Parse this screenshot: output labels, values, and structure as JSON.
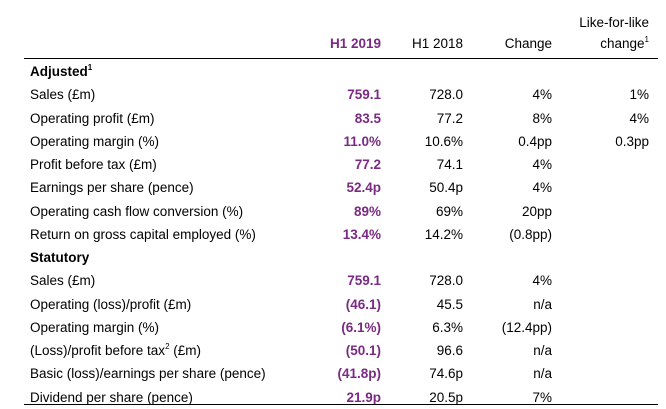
{
  "header": {
    "col_h1_2019": "H1 2019",
    "col_h1_2018": "H1 2018",
    "col_change": "Change",
    "col_lfl_line1": "Like-for-like",
    "col_lfl_line2": "change",
    "col_lfl_sup": "1"
  },
  "sections": [
    {
      "title": "Adjusted",
      "title_sup": "1",
      "rows": [
        {
          "label": "Sales (£m)",
          "h1_2019": "759.1",
          "h1_2018": "728.0",
          "change": "4%",
          "lfl": "1%"
        },
        {
          "label": "Operating profit (£m)",
          "h1_2019": "83.5",
          "h1_2018": "77.2",
          "change": "8%",
          "lfl": "4%"
        },
        {
          "label": "Operating margin (%)",
          "h1_2019": "11.0%",
          "h1_2018": "10.6%",
          "change": "0.4pp",
          "lfl": "0.3pp"
        },
        {
          "label": "Profit before tax (£m)",
          "h1_2019": "77.2",
          "h1_2018": "74.1",
          "change": "4%",
          "lfl": ""
        },
        {
          "label": "Earnings per share (pence)",
          "h1_2019": "52.4p",
          "h1_2018": "50.4p",
          "change": "4%",
          "lfl": ""
        },
        {
          "label": "Operating cash flow conversion (%)",
          "h1_2019": "89%",
          "h1_2018": "69%",
          "change": "20pp",
          "lfl": ""
        },
        {
          "label": "Return on gross capital employed (%)",
          "h1_2019": "13.4%",
          "h1_2018": "14.2%",
          "change": "(0.8pp)",
          "lfl": ""
        }
      ]
    },
    {
      "title": "Statutory",
      "title_sup": "",
      "rows": [
        {
          "label": "Sales (£m)",
          "h1_2019": "759.1",
          "h1_2018": "728.0",
          "change": "4%",
          "lfl": ""
        },
        {
          "label": "Operating (loss)/profit (£m)",
          "h1_2019": "(46.1)",
          "h1_2018": "45.5",
          "change": "n/a",
          "lfl": ""
        },
        {
          "label": "Operating margin (%)",
          "h1_2019": "(6.1%)",
          "h1_2018": "6.3%",
          "change": "(12.4pp)",
          "lfl": ""
        },
        {
          "label": "(Loss)/profit before tax",
          "label_sup": "2",
          "label_after": " (£m)",
          "h1_2019": "(50.1)",
          "h1_2018": "96.6",
          "change": "n/a",
          "lfl": ""
        },
        {
          "label": "Basic (loss)/earnings per share (pence)",
          "h1_2019": "(41.8p)",
          "h1_2018": "74.6p",
          "change": "n/a",
          "lfl": ""
        },
        {
          "label": "Dividend per share (pence)",
          "h1_2019": "21.9p",
          "h1_2018": "20.5p",
          "change": "7%",
          "lfl": ""
        }
      ]
    }
  ]
}
